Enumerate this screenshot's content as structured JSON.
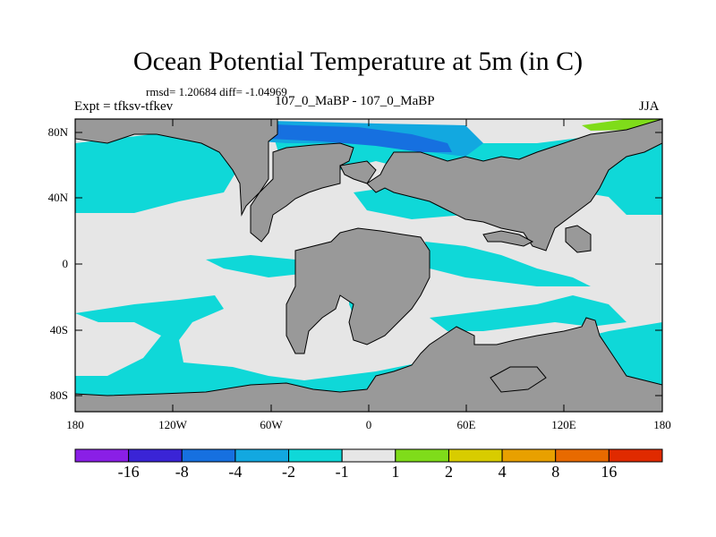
{
  "title": "Ocean Potential Temperature at 5m (in C)",
  "stats": "rmsd= 1.20684  diff= -1.04969",
  "expt": "Expt = tfksv-tfkev",
  "cases": "107_0_MaBP - 107_0_MaBP",
  "season": "JJA",
  "y_labels": [
    "80N",
    "40N",
    "0",
    "40S",
    "80S"
  ],
  "x_labels": [
    "180",
    "120W",
    "60W",
    "0",
    "60E",
    "120E",
    "180"
  ],
  "colorbar": {
    "labels": [
      "-16",
      "-8",
      "-4",
      "-2",
      "-1",
      "1",
      "2",
      "4",
      "8",
      "16"
    ],
    "colors": [
      "#8a1fe6",
      "#3a24d6",
      "#1670e0",
      "#12a8e0",
      "#0fd8d8",
      "#e6e6e6",
      "#7fdc1a",
      "#d8cc00",
      "#e8a000",
      "#e86a00",
      "#e02a00"
    ]
  },
  "colors": {
    "land": "#999999",
    "no_change": "#e6e6e6",
    "cool_1_2": "#0fd8d8",
    "cool_2_4": "#12a8e0",
    "cool_4_8": "#1670e0",
    "warm_1_2": "#7fdc1a"
  }
}
